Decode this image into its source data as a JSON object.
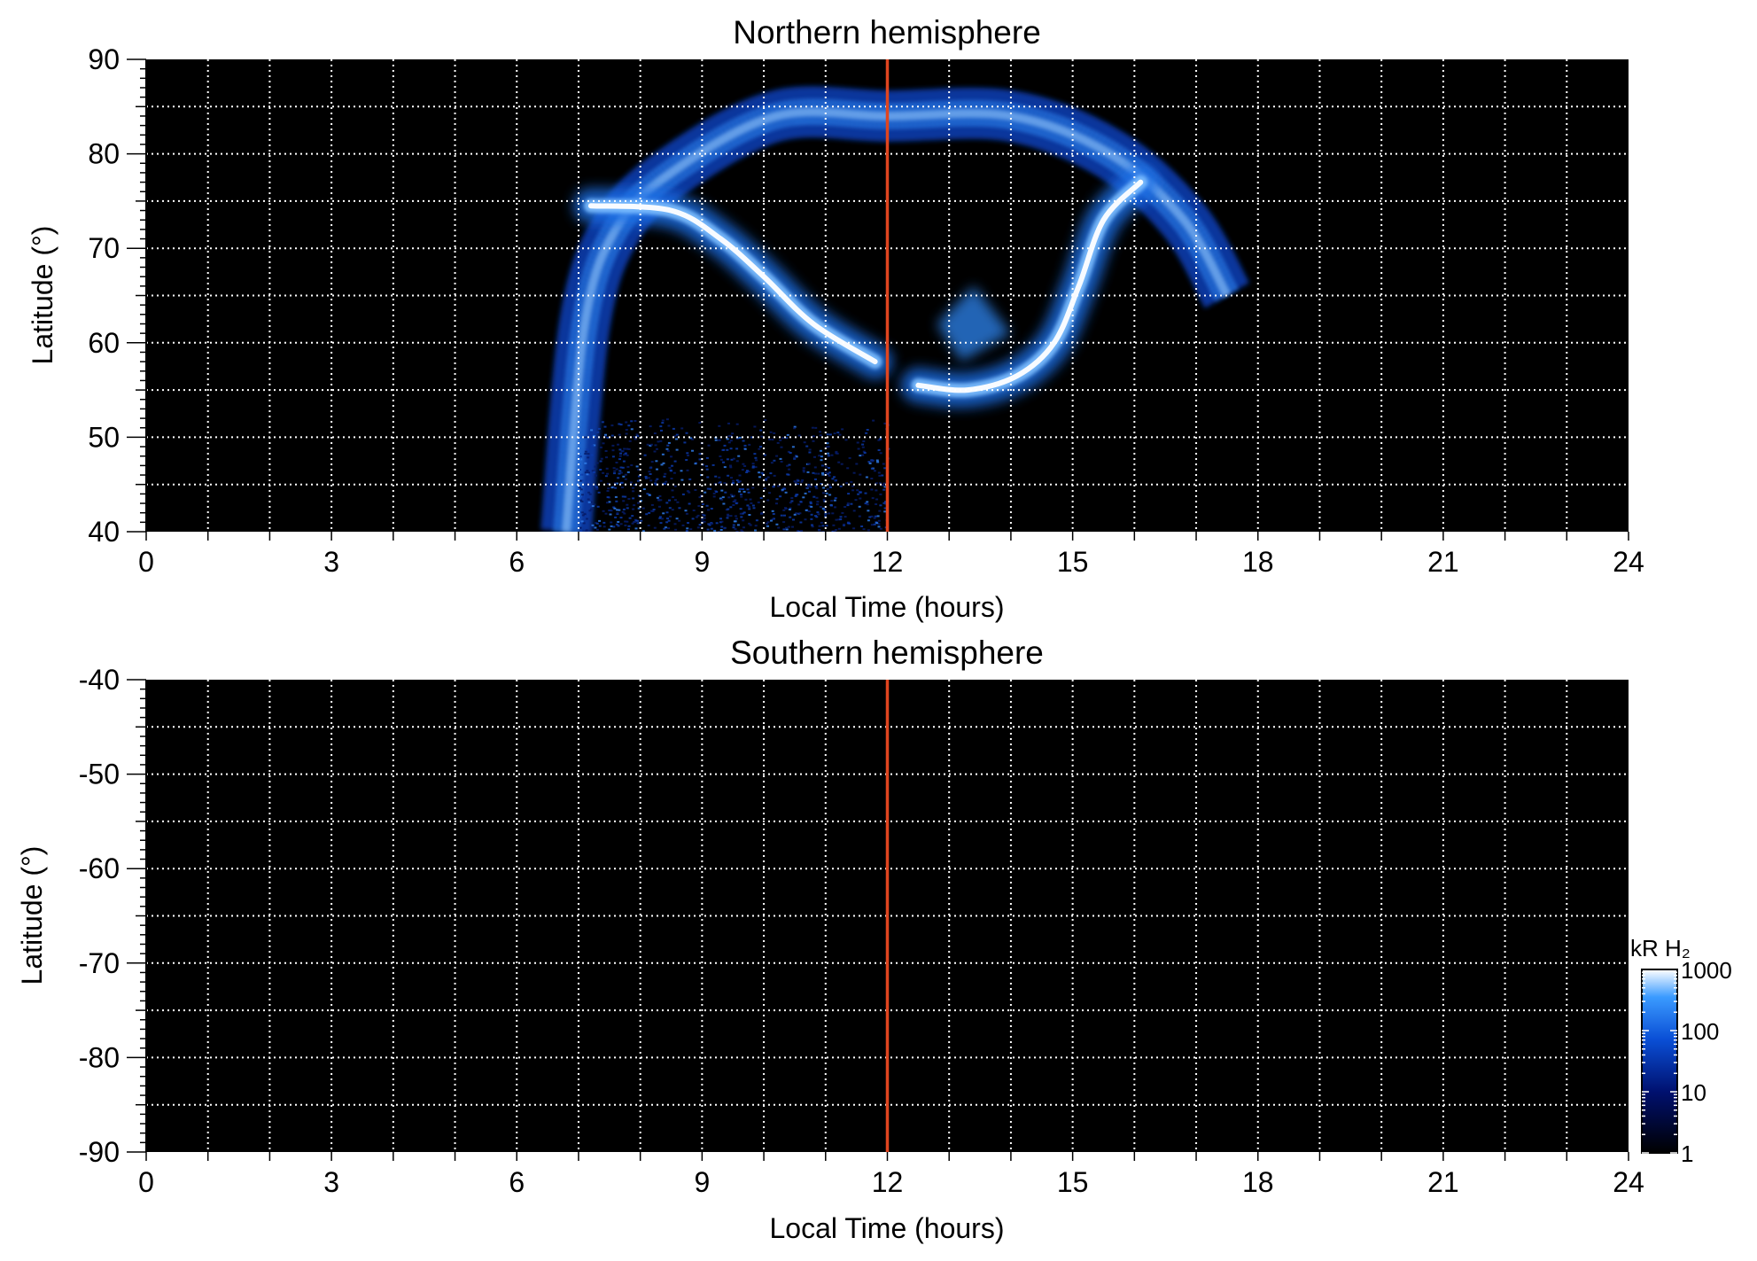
{
  "chart_data": [
    {
      "type": "heatmap",
      "title": "Northern hemisphere",
      "xlabel": "Local Time (hours)",
      "ylabel": "Latitude (°)",
      "xlim": [
        0,
        24
      ],
      "ylim": [
        40,
        90
      ],
      "xticks": [
        0,
        3,
        6,
        9,
        12,
        15,
        18,
        21,
        24
      ],
      "yticks": [
        40,
        50,
        60,
        70,
        80,
        90
      ],
      "grid": true,
      "background": "#000000",
      "noon_line": {
        "x": 12,
        "color": "#e0451f"
      },
      "features": [
        {
          "kind": "outer_arc",
          "points": [
            [
              6.8,
              40
            ],
            [
              7.1,
              62
            ],
            [
              7.6,
              72
            ],
            [
              8.5,
              78
            ],
            [
              10.2,
              84
            ],
            [
              12,
              84
            ],
            [
              14,
              84
            ],
            [
              15.6,
              80
            ],
            [
              16.8,
              73
            ],
            [
              17.5,
              65
            ]
          ]
        },
        {
          "kind": "dawn_arc",
          "points": [
            [
              7.2,
              74.5
            ],
            [
              8.5,
              74
            ],
            [
              9.3,
              71
            ],
            [
              10,
              67
            ],
            [
              10.8,
              62
            ],
            [
              11.8,
              58
            ]
          ]
        },
        {
          "kind": "afternoon_arc",
          "points": [
            [
              12.5,
              55.5
            ],
            [
              13.3,
              55
            ],
            [
              14.1,
              56.5
            ],
            [
              14.7,
              60
            ],
            [
              15.1,
              66
            ],
            [
              15.5,
              73
            ],
            [
              16.1,
              77
            ]
          ]
        },
        {
          "kind": "diffuse_patch",
          "points": [
            [
              12.8,
              62
            ],
            [
              13.4,
              66
            ],
            [
              14,
              61
            ],
            [
              13.2,
              58
            ]
          ]
        },
        {
          "kind": "low_latitude_noise",
          "x": [
            7,
            12
          ],
          "y": [
            40,
            52
          ]
        }
      ]
    },
    {
      "type": "heatmap",
      "title": "Southern hemisphere",
      "xlabel": "Local Time (hours)",
      "ylabel": "Latitude (°)",
      "xlim": [
        0,
        24
      ],
      "ylim": [
        -90,
        -40
      ],
      "xticks": [
        0,
        3,
        6,
        9,
        12,
        15,
        18,
        21,
        24
      ],
      "yticks": [
        -40,
        -50,
        -60,
        -70,
        -80,
        -90
      ],
      "grid": true,
      "background": "#000000",
      "noon_line": {
        "x": 12,
        "color": "#e0451f"
      },
      "features": []
    }
  ],
  "colorbar": {
    "label": "kR H₂",
    "scale": "log",
    "range": [
      1,
      1000
    ],
    "ticks": [
      "1",
      "10",
      "100",
      "1000"
    ],
    "colors": [
      "#000000",
      "#00106e",
      "#0a4fd6",
      "#3b9bff",
      "#ffffff"
    ]
  }
}
